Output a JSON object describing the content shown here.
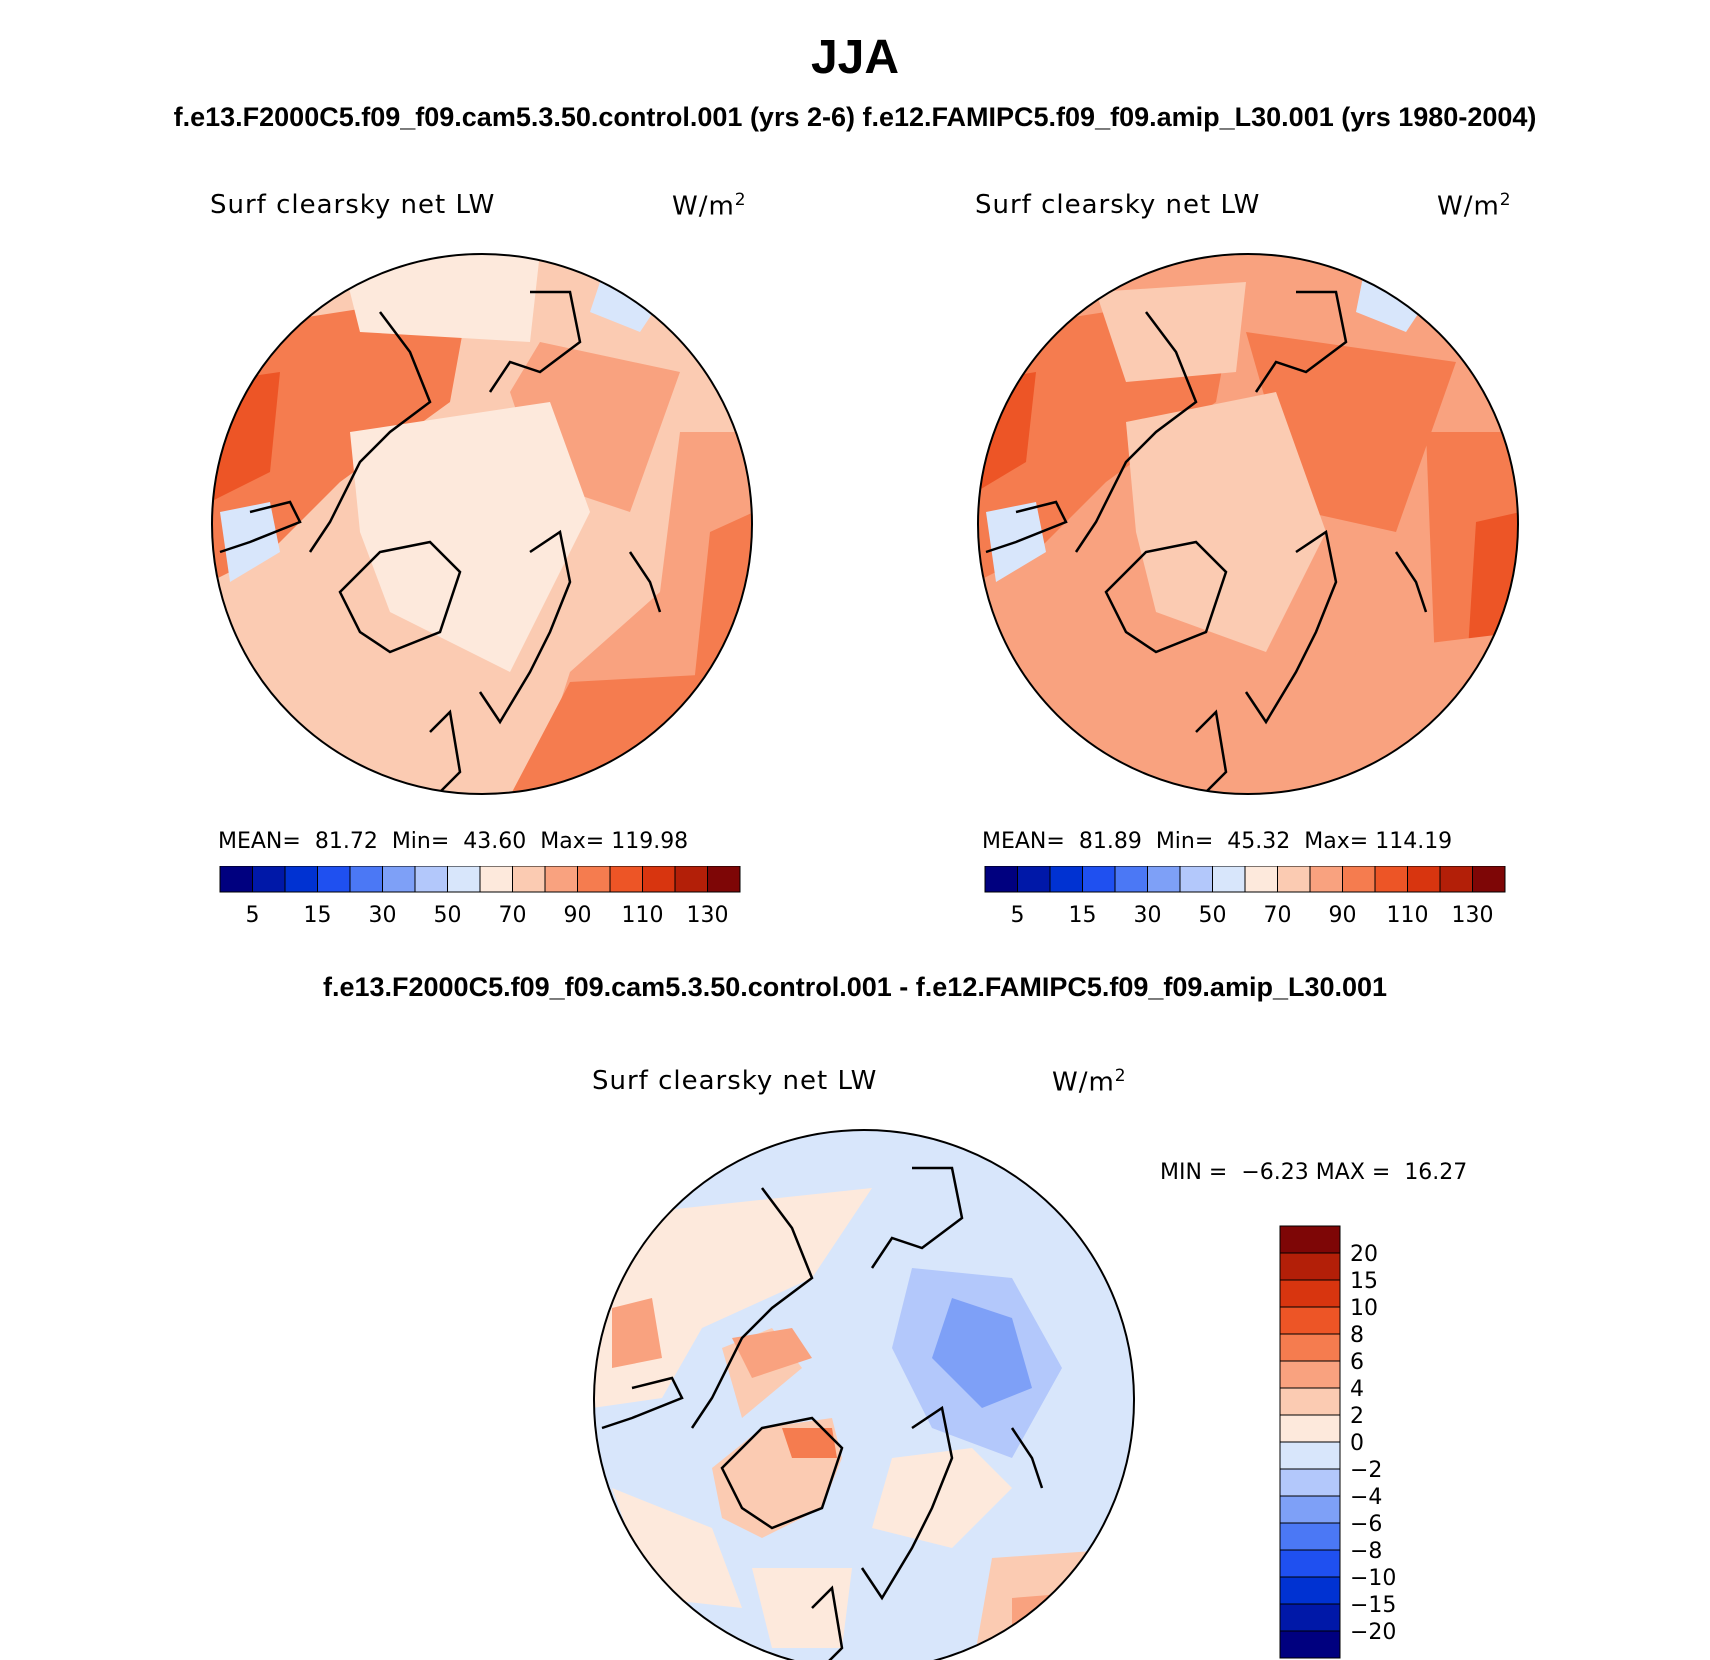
{
  "figure": {
    "season": "JJA",
    "cases_line": "f.e13.F2000C5.f09_f09.cam5.3.50.control.001 (yrs 2-6)  f.e12.FAMIPC5.f09_f09.amip_L30.001 (yrs 1980-2004)",
    "diff_line": "f.e13.F2000C5.f09_f09.cam5.3.50.control.001 - f.e12.FAMIPC5.f09_f09.amip_L30.001"
  },
  "panels": [
    {
      "variable": "Surf clearsky net LW",
      "units_base": "W/m",
      "units_exp": "2",
      "mean_label": "MEAN=",
      "mean": "81.72",
      "min_label": "Min=",
      "min": "43.60",
      "max_label": "Max=",
      "max": "119.98"
    },
    {
      "variable": "Surf clearsky net LW",
      "units_base": "W/m",
      "units_exp": "2",
      "mean_label": "MEAN=",
      "mean": "81.89",
      "min_label": "Min=",
      "min": "45.32",
      "max_label": "Max=",
      "max": "114.19"
    }
  ],
  "diff_panel": {
    "variable": "Surf clearsky net LW",
    "units_base": "W/m",
    "units_exp": "2",
    "min_label": "MIN =",
    "min": "−6.23",
    "max_label": "MAX =",
    "max": "16.27"
  },
  "main_colorbar": {
    "colors": [
      "#00007f",
      "#0018a8",
      "#0032d2",
      "#1f50f0",
      "#4b78f5",
      "#7ea0f7",
      "#b3c8fb",
      "#d8e6fb",
      "#fde9dc",
      "#fbcbb2",
      "#f9a27f",
      "#f57c4f",
      "#ed5526",
      "#d8350f",
      "#b31f08",
      "#7e0606"
    ],
    "labels": [
      "5",
      "15",
      "30",
      "50",
      "70",
      "90",
      "110",
      "130"
    ]
  },
  "diff_colorbar": {
    "colors": [
      "#7e0606",
      "#b31f08",
      "#d8350f",
      "#ed5526",
      "#f57c4f",
      "#f9a27f",
      "#fbcbb2",
      "#fde9dc",
      "#d8e6fb",
      "#b3c8fb",
      "#7ea0f7",
      "#4b78f5",
      "#1f50f0",
      "#0032d2",
      "#0018a8",
      "#00007f"
    ],
    "labels": [
      "20",
      "15",
      "10",
      "8",
      "6",
      "4",
      "2",
      "0",
      "−2",
      "−4",
      "−6",
      "−8",
      "−10",
      "−15",
      "−20"
    ]
  }
}
